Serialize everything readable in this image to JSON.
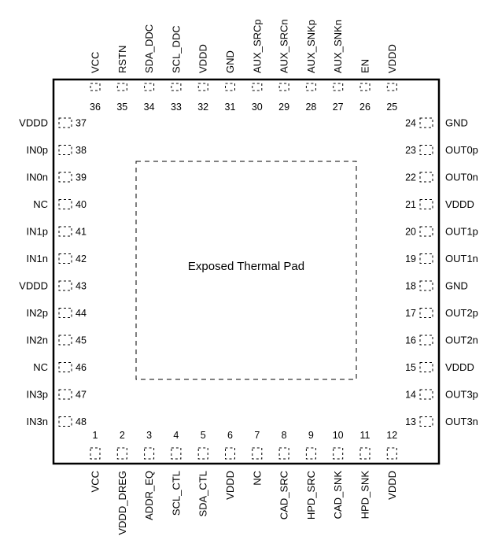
{
  "diagram": {
    "pad_label": "Exposed Thermal Pad",
    "top_pins": [
      {
        "num": "36",
        "name": "VCC"
      },
      {
        "num": "35",
        "name": "RSTN"
      },
      {
        "num": "34",
        "name": "SDA_DDC"
      },
      {
        "num": "33",
        "name": "SCL_DDC"
      },
      {
        "num": "32",
        "name": "VDDD"
      },
      {
        "num": "31",
        "name": "GND"
      },
      {
        "num": "30",
        "name": "AUX_SRCp"
      },
      {
        "num": "29",
        "name": "AUX_SRCn"
      },
      {
        "num": "28",
        "name": "AUX_SNKp"
      },
      {
        "num": "27",
        "name": "AUX_SNKn"
      },
      {
        "num": "26",
        "name": "EN"
      },
      {
        "num": "25",
        "name": "VDDD"
      }
    ],
    "left_pins": [
      {
        "num": "37",
        "name": "VDDD"
      },
      {
        "num": "38",
        "name": "IN0p"
      },
      {
        "num": "39",
        "name": "IN0n"
      },
      {
        "num": "40",
        "name": "NC"
      },
      {
        "num": "41",
        "name": "IN1p"
      },
      {
        "num": "42",
        "name": "IN1n"
      },
      {
        "num": "43",
        "name": "VDDD"
      },
      {
        "num": "44",
        "name": "IN2p"
      },
      {
        "num": "45",
        "name": "IN2n"
      },
      {
        "num": "46",
        "name": "NC"
      },
      {
        "num": "47",
        "name": "IN3p"
      },
      {
        "num": "48",
        "name": "IN3n"
      }
    ],
    "right_pins": [
      {
        "num": "24",
        "name": "GND"
      },
      {
        "num": "23",
        "name": "OUT0p"
      },
      {
        "num": "22",
        "name": "OUT0n"
      },
      {
        "num": "21",
        "name": "VDDD"
      },
      {
        "num": "20",
        "name": "OUT1p"
      },
      {
        "num": "19",
        "name": "OUT1n"
      },
      {
        "num": "18",
        "name": "GND"
      },
      {
        "num": "17",
        "name": "OUT2p"
      },
      {
        "num": "16",
        "name": "OUT2n"
      },
      {
        "num": "15",
        "name": "VDDD"
      },
      {
        "num": "14",
        "name": "OUT3p"
      },
      {
        "num": "13",
        "name": "OUT3n"
      }
    ],
    "bottom_pins": [
      {
        "num": "1",
        "name": "VCC"
      },
      {
        "num": "2",
        "name": "VDDD_DREG"
      },
      {
        "num": "3",
        "name": "ADDR_EQ"
      },
      {
        "num": "4",
        "name": "SCL_CTL"
      },
      {
        "num": "5",
        "name": "SDA_CTL"
      },
      {
        "num": "6",
        "name": "VDDD"
      },
      {
        "num": "7",
        "name": "NC"
      },
      {
        "num": "8",
        "name": "CAD_SRC"
      },
      {
        "num": "9",
        "name": "HPD_SRC"
      },
      {
        "num": "10",
        "name": "CAD_SNK"
      },
      {
        "num": "11",
        "name": "HPD_SNK"
      },
      {
        "num": "12",
        "name": "VDDD"
      }
    ]
  }
}
